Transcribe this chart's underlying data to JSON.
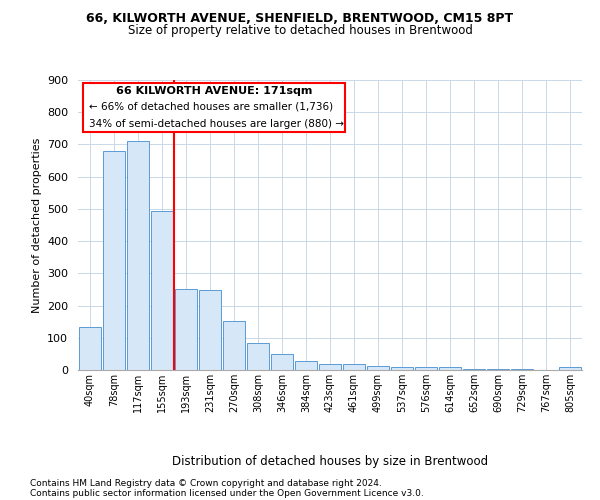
{
  "title1": "66, KILWORTH AVENUE, SHENFIELD, BRENTWOOD, CM15 8PT",
  "title2": "Size of property relative to detached houses in Brentwood",
  "xlabel": "Distribution of detached houses by size in Brentwood",
  "ylabel": "Number of detached properties",
  "categories": [
    "40sqm",
    "78sqm",
    "117sqm",
    "155sqm",
    "193sqm",
    "231sqm",
    "270sqm",
    "308sqm",
    "346sqm",
    "384sqm",
    "423sqm",
    "461sqm",
    "499sqm",
    "537sqm",
    "576sqm",
    "614sqm",
    "652sqm",
    "690sqm",
    "729sqm",
    "767sqm",
    "805sqm"
  ],
  "values": [
    135,
    680,
    710,
    493,
    252,
    248,
    153,
    85,
    49,
    27,
    20,
    20,
    11,
    10,
    10,
    8,
    3,
    2,
    2,
    1,
    8
  ],
  "bar_color": "#d6e8f7",
  "bar_edge_color": "#5b9bd5",
  "red_line_x": 3.5,
  "annotation_title": "66 KILWORTH AVENUE: 171sqm",
  "annotation_line1": "← 66% of detached houses are smaller (1,736)",
  "annotation_line2": "34% of semi-detached houses are larger (880) →",
  "ylim": [
    0,
    900
  ],
  "yticks": [
    0,
    100,
    200,
    300,
    400,
    500,
    600,
    700,
    800,
    900
  ],
  "footer1": "Contains HM Land Registry data © Crown copyright and database right 2024.",
  "footer2": "Contains public sector information licensed under the Open Government Licence v3.0.",
  "bg_color": "#ffffff",
  "grid_color": "#c8d8e8"
}
